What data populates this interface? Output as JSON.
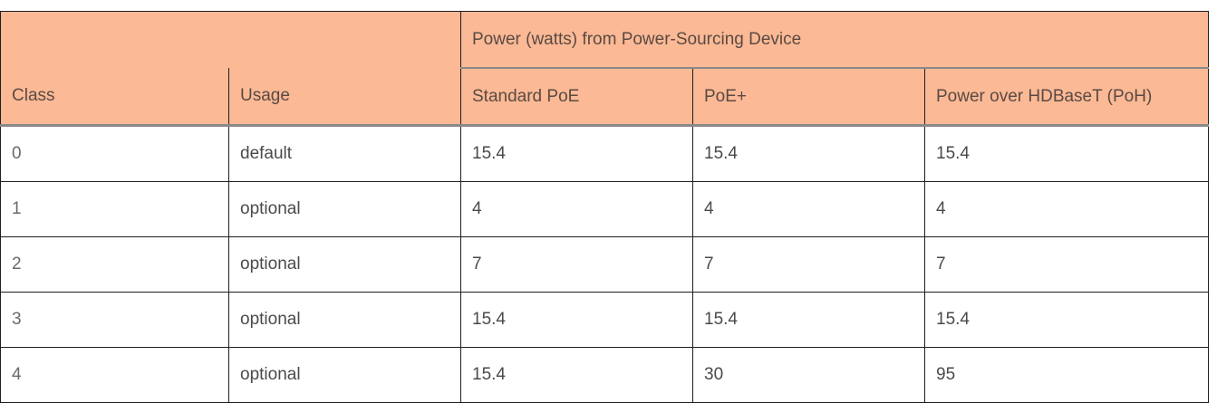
{
  "table": {
    "group_header": "Power (watts) from Power-Sourcing Device",
    "columns": [
      "Class",
      "Usage",
      "Standard PoE",
      "PoE+",
      "Power over HDBaseT (PoH)"
    ],
    "rows": [
      [
        "0",
        "default",
        "15.4",
        "15.4",
        "15.4"
      ],
      [
        "1",
        "optional",
        "4",
        "4",
        "4"
      ],
      [
        "2",
        "optional",
        "7",
        "7",
        "7"
      ],
      [
        "3",
        "optional",
        "15.4",
        "15.4",
        "15.4"
      ],
      [
        "4",
        "optional",
        "15.4",
        "30",
        "95"
      ]
    ],
    "colors": {
      "header_bg": "#fbb995",
      "border": "#1f1f1f",
      "header_rule": "#8a8a8a"
    }
  }
}
